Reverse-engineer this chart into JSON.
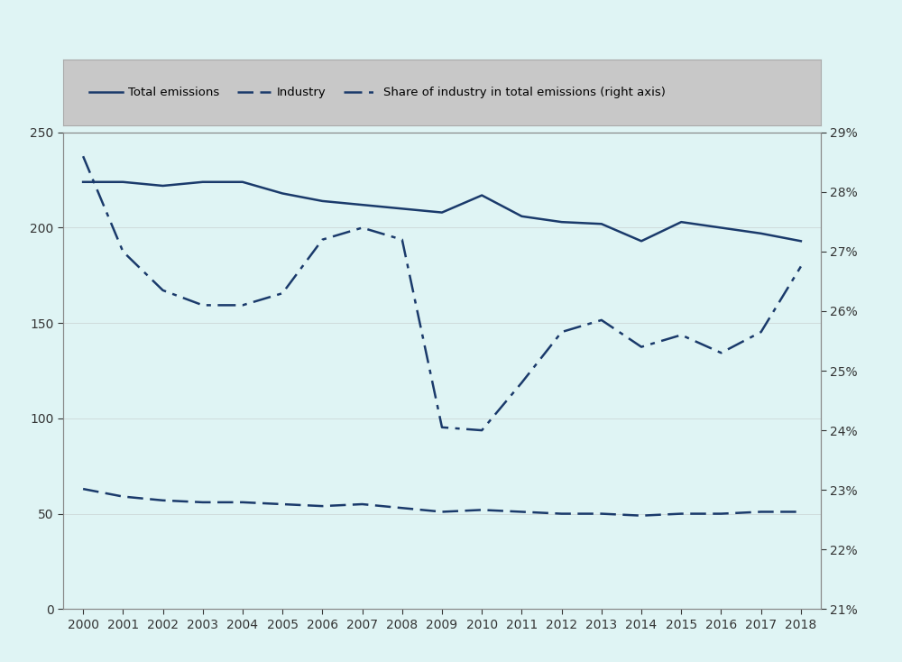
{
  "years": [
    2000,
    2001,
    2002,
    2003,
    2004,
    2005,
    2006,
    2007,
    2008,
    2009,
    2010,
    2011,
    2012,
    2013,
    2014,
    2015,
    2016,
    2017,
    2018
  ],
  "total_emissions": [
    224,
    224,
    222,
    224,
    224,
    218,
    214,
    212,
    210,
    208,
    217,
    206,
    203,
    202,
    193,
    203,
    200,
    197,
    193
  ],
  "industry": [
    63,
    59,
    57,
    56,
    56,
    55,
    54,
    55,
    53,
    51,
    52,
    51,
    50,
    50,
    49,
    50,
    50,
    51,
    51
  ],
  "share_pct": [
    28.6,
    27.0,
    26.35,
    26.1,
    26.1,
    26.3,
    27.2,
    27.4,
    27.2,
    24.05,
    24.0,
    24.8,
    25.65,
    25.85,
    25.4,
    25.6,
    25.3,
    25.65,
    26.75
  ],
  "line_color": "#1a3a6b",
  "plot_bg_color": "#dff4f4",
  "fig_bg_color": "#dff4f4",
  "legend_bg_color": "#c8c8c8",
  "legend_edge_color": "#aaaaaa",
  "ylim_left": [
    0,
    250
  ],
  "ylim_right": [
    21,
    29
  ],
  "yticks_left": [
    0,
    50,
    100,
    150,
    200,
    250
  ],
  "yticks_right": [
    21,
    22,
    23,
    24,
    25,
    26,
    27,
    28,
    29
  ],
  "legend_labels": [
    "Total emissions",
    "Industry",
    "Share of industry in total emissions (right axis)"
  ],
  "linewidth": 1.8,
  "tick_fontsize": 10,
  "legend_fontsize": 9.5
}
